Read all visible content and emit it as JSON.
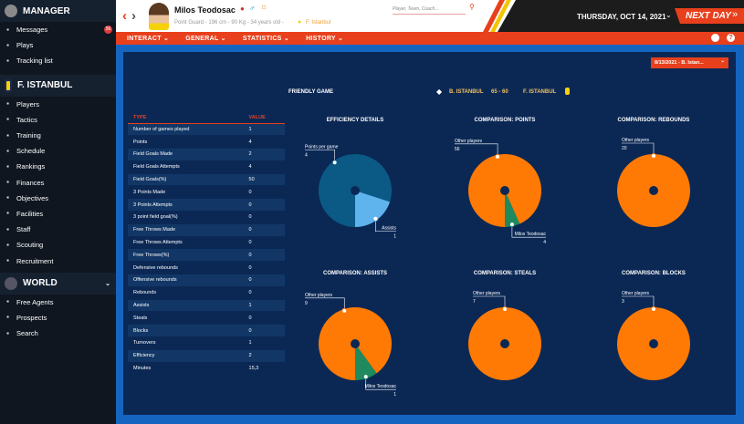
{
  "sidebar": {
    "manager": "MANAGER",
    "manager_items": [
      {
        "label": "Messages",
        "icon": "inbox-icon",
        "badge": "56"
      },
      {
        "label": "Plays",
        "icon": "clipboard-icon"
      },
      {
        "label": "Tracking list",
        "icon": "star-icon"
      }
    ],
    "team": "F. ISTANBUL",
    "team_items": [
      {
        "label": "Players",
        "icon": "players-icon"
      },
      {
        "label": "Tactics",
        "icon": "tactics-icon"
      },
      {
        "label": "Training",
        "icon": "whistle-icon"
      },
      {
        "label": "Schedule",
        "icon": "calendar-icon"
      },
      {
        "label": "Rankings",
        "icon": "podium-icon"
      },
      {
        "label": "Finances",
        "icon": "money-icon"
      },
      {
        "label": "Objectives",
        "icon": "briefcase-icon"
      },
      {
        "label": "Facilities",
        "icon": "building-icon"
      },
      {
        "label": "Staff",
        "icon": "staff-icon"
      },
      {
        "label": "Scouting",
        "icon": "binoculars-icon"
      },
      {
        "label": "Recruitment",
        "icon": "contract-icon"
      }
    ],
    "world": "WORLD",
    "world_items": [
      {
        "label": "Free Agents",
        "icon": "free-agent-icon"
      },
      {
        "label": "Prospects",
        "icon": "rocket-icon"
      },
      {
        "label": "Search",
        "icon": "search-icon"
      }
    ]
  },
  "header": {
    "player_name": "Milos Teodosac",
    "details": "Point Guard - 196 cm - 90 Kg - 34 years old -",
    "team": "F. Istanbul",
    "search_placeholder": "Player, Team, Coach...",
    "date": "THURSDAY, OCT 14, 2021",
    "next_day": "NEXT DAY"
  },
  "nav": [
    "INTERACT",
    "GENERAL",
    "STATISTICS",
    "HISTORY"
  ],
  "game": {
    "selector": "8/13/2021 - B. Istan...",
    "type": "FRIENDLY GAME",
    "home": "B. ISTANBUL",
    "score": "65 - 60",
    "away": "F. ISTANBUL"
  },
  "table": {
    "headers": [
      "TYPE",
      "VALUE"
    ],
    "rows": [
      [
        "Number of games played",
        "1"
      ],
      [
        "Points",
        "4"
      ],
      [
        "Field Goals Made",
        "2"
      ],
      [
        "Field Goals Attempts",
        "4"
      ],
      [
        "Field Goals(%)",
        "50"
      ],
      [
        "3 Points Made",
        "0"
      ],
      [
        "3 Points Attempts",
        "0"
      ],
      [
        "3 point field goal(%)",
        "0"
      ],
      [
        "Free Throws Made",
        "0"
      ],
      [
        "Free Throws Attempts",
        "0"
      ],
      [
        "Free Throws(%)",
        "0"
      ],
      [
        "Defensive rebounds",
        "0"
      ],
      [
        "Offensive rebounds",
        "0"
      ],
      [
        "Rebounds",
        "0"
      ],
      [
        "Assists",
        "1"
      ],
      [
        "Steals",
        "0"
      ],
      [
        "Blocks",
        "0"
      ],
      [
        "Turnovers",
        "1"
      ],
      [
        "Efficiency",
        "2"
      ],
      [
        "Minutes",
        "15,3"
      ]
    ]
  },
  "chart_data": [
    {
      "type": "pie",
      "title": "EFFICIENCY DETAILS",
      "slices": [
        {
          "name": "Points per game",
          "value": 4,
          "color": "#0b5a85"
        },
        {
          "name": "Assists",
          "value": 1,
          "color": "#5fb4ee"
        }
      ]
    },
    {
      "type": "pie",
      "title": "COMPARISON: POINTS",
      "slices": [
        {
          "name": "Other players",
          "value": 56,
          "color": "#ff7a05"
        },
        {
          "name": "Milos Teodosac",
          "value": 4,
          "color": "#1e8a5e"
        }
      ]
    },
    {
      "type": "pie",
      "title": "COMPARISON: REBOUNDS",
      "slices": [
        {
          "name": "Other players",
          "value": 20,
          "color": "#ff7a05"
        }
      ]
    },
    {
      "type": "pie",
      "title": "COMPARISON: ASSISTS",
      "slices": [
        {
          "name": "Other players",
          "value": 9,
          "color": "#ff7a05"
        },
        {
          "name": "Milos Teodosac",
          "value": 1,
          "color": "#1e8a5e"
        }
      ]
    },
    {
      "type": "pie",
      "title": "COMPARISON: STEALS",
      "slices": [
        {
          "name": "Other players",
          "value": 7,
          "color": "#ff7a05"
        }
      ]
    },
    {
      "type": "pie",
      "title": "COMPARISON: BLOCKS",
      "slices": [
        {
          "name": "Other players",
          "value": 3,
          "color": "#ff7a05"
        }
      ]
    }
  ]
}
